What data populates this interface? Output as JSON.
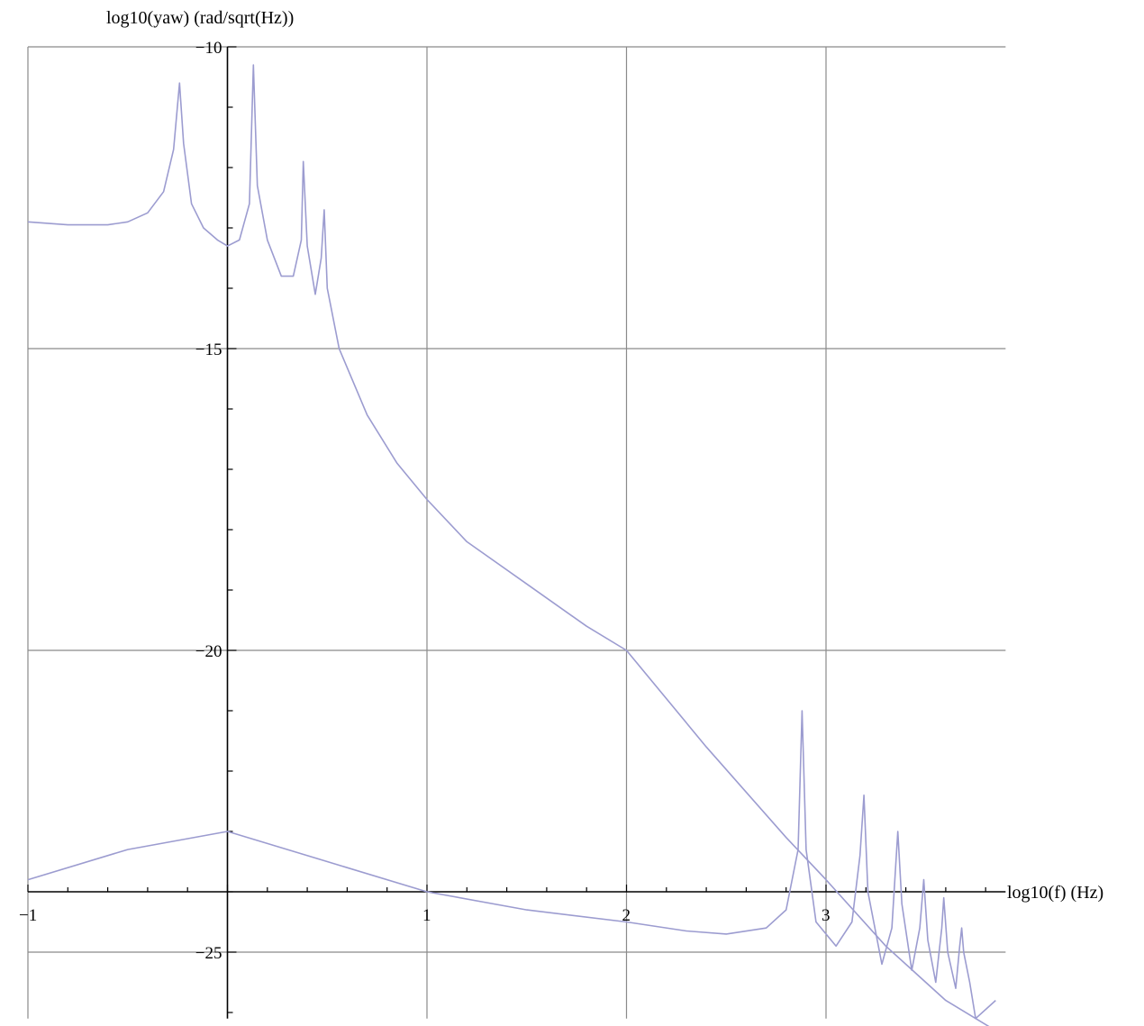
{
  "chart_data": {
    "type": "line",
    "xlabel": "log10(f) (Hz)",
    "ylabel": "log10(yaw) (rad/sqrt(Hz))",
    "xlim": [
      -1,
      3.9
    ],
    "ylim": [
      -26.1,
      -10
    ],
    "x_scale": "log10 values",
    "grid": true,
    "x_ticks": [
      {
        "value": -1,
        "label": "-1"
      },
      {
        "value": 1,
        "label": "1"
      },
      {
        "value": 2,
        "label": "2"
      },
      {
        "value": 3,
        "label": "3"
      }
    ],
    "y_ticks": [
      {
        "value": -10,
        "label": "-10"
      },
      {
        "value": -15,
        "label": "-15"
      },
      {
        "value": -20,
        "label": "-20"
      },
      {
        "value": -25,
        "label": "-25"
      }
    ],
    "x_axis_at_y": -24,
    "y_axis_at_x": 0,
    "series": [
      {
        "color": "#9c9cd0",
        "points": [
          [
            -1.0,
            -12.9
          ],
          [
            -0.8,
            -12.95
          ],
          [
            -0.6,
            -12.95
          ],
          [
            -0.5,
            -12.9
          ],
          [
            -0.4,
            -12.75
          ],
          [
            -0.32,
            -12.4
          ],
          [
            -0.27,
            -11.7
          ],
          [
            -0.24,
            -10.6
          ],
          [
            -0.22,
            -11.6
          ],
          [
            -0.18,
            -12.6
          ],
          [
            -0.12,
            -13.0
          ],
          [
            -0.05,
            -13.2
          ],
          [
            0.0,
            -13.3
          ],
          [
            0.06,
            -13.2
          ],
          [
            0.11,
            -12.6
          ],
          [
            0.13,
            -10.3
          ],
          [
            0.15,
            -12.3
          ],
          [
            0.2,
            -13.2
          ],
          [
            0.27,
            -13.8
          ],
          [
            0.33,
            -13.8
          ],
          [
            0.37,
            -13.2
          ],
          [
            0.38,
            -11.9
          ],
          [
            0.4,
            -13.3
          ],
          [
            0.44,
            -14.1
          ],
          [
            0.47,
            -13.5
          ],
          [
            0.485,
            -12.7
          ],
          [
            0.5,
            -14.0
          ],
          [
            0.56,
            -15.0
          ],
          [
            0.7,
            -16.1
          ],
          [
            0.85,
            -16.9
          ],
          [
            1.0,
            -17.5
          ],
          [
            1.2,
            -18.2
          ],
          [
            1.5,
            -18.9
          ],
          [
            1.8,
            -19.6
          ],
          [
            2.0,
            -20.0
          ],
          [
            2.4,
            -21.6
          ],
          [
            2.8,
            -23.1
          ],
          [
            3.0,
            -23.8
          ],
          [
            3.3,
            -24.9
          ],
          [
            3.6,
            -25.8
          ],
          [
            3.85,
            -26.3
          ]
        ]
      },
      {
        "color": "#9c9cd0",
        "points": [
          [
            -1.0,
            -23.8
          ],
          [
            -0.5,
            -23.3
          ],
          [
            0.0,
            -23.0
          ],
          [
            0.5,
            -23.5
          ],
          [
            1.0,
            -24.0
          ],
          [
            1.5,
            -24.3
          ],
          [
            2.0,
            -24.5
          ],
          [
            2.3,
            -24.65
          ],
          [
            2.5,
            -24.7
          ],
          [
            2.7,
            -24.6
          ],
          [
            2.8,
            -24.3
          ],
          [
            2.86,
            -23.3
          ],
          [
            2.88,
            -21.0
          ],
          [
            2.9,
            -23.3
          ],
          [
            2.95,
            -24.5
          ],
          [
            3.05,
            -24.9
          ],
          [
            3.13,
            -24.5
          ],
          [
            3.17,
            -23.4
          ],
          [
            3.19,
            -22.4
          ],
          [
            3.21,
            -24.0
          ],
          [
            3.28,
            -25.2
          ],
          [
            3.33,
            -24.6
          ],
          [
            3.36,
            -23.0
          ],
          [
            3.38,
            -24.2
          ],
          [
            3.43,
            -25.3
          ],
          [
            3.47,
            -24.6
          ],
          [
            3.49,
            -23.8
          ],
          [
            3.51,
            -24.8
          ],
          [
            3.55,
            -25.5
          ],
          [
            3.58,
            -24.6
          ],
          [
            3.59,
            -24.1
          ],
          [
            3.61,
            -25.0
          ],
          [
            3.65,
            -25.6
          ],
          [
            3.67,
            -24.9
          ],
          [
            3.68,
            -24.6
          ],
          [
            3.69,
            -25.0
          ],
          [
            3.72,
            -25.5
          ],
          [
            3.75,
            -26.1
          ],
          [
            3.85,
            -25.8
          ]
        ]
      }
    ]
  }
}
